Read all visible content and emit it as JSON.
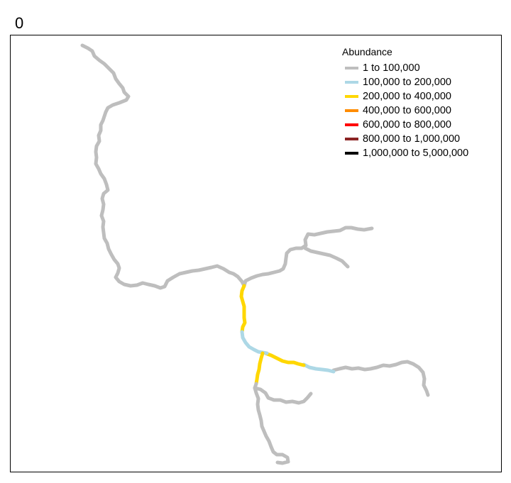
{
  "panel": {
    "title": "0"
  },
  "legend": {
    "title": "Abundance",
    "items": [
      {
        "label": "1 to 100,000",
        "color": "#bebebe"
      },
      {
        "label": "100,000 to 200,000",
        "color": "#add8e6"
      },
      {
        "label": "200,000 to 400,000",
        "color": "#ffd700"
      },
      {
        "label": "400,000 to 600,000",
        "color": "#ff8c00"
      },
      {
        "label": "600,000 to 800,000",
        "color": "#ff0000"
      },
      {
        "label": "800,000 to 1,000,000",
        "color": "#8b2323"
      },
      {
        "label": "1,000,000 to 5,000,000",
        "color": "#000000"
      }
    ]
  },
  "river_segments": [
    {
      "name": "northwest-main-stem",
      "class": 0
    },
    {
      "name": "northeast-upper-branch",
      "class": 0
    },
    {
      "name": "northeast-lower-branch",
      "class": 0
    },
    {
      "name": "east-tributary",
      "class": 0
    },
    {
      "name": "east-tributary-lower",
      "class": 1
    },
    {
      "name": "east-reach",
      "class": 2
    },
    {
      "name": "central-reach",
      "class": 2
    },
    {
      "name": "confluence-reach",
      "class": 1
    },
    {
      "name": "south-reach",
      "class": 2
    },
    {
      "name": "south-main-stem",
      "class": 0
    },
    {
      "name": "southeast-tributary",
      "class": 0
    }
  ]
}
